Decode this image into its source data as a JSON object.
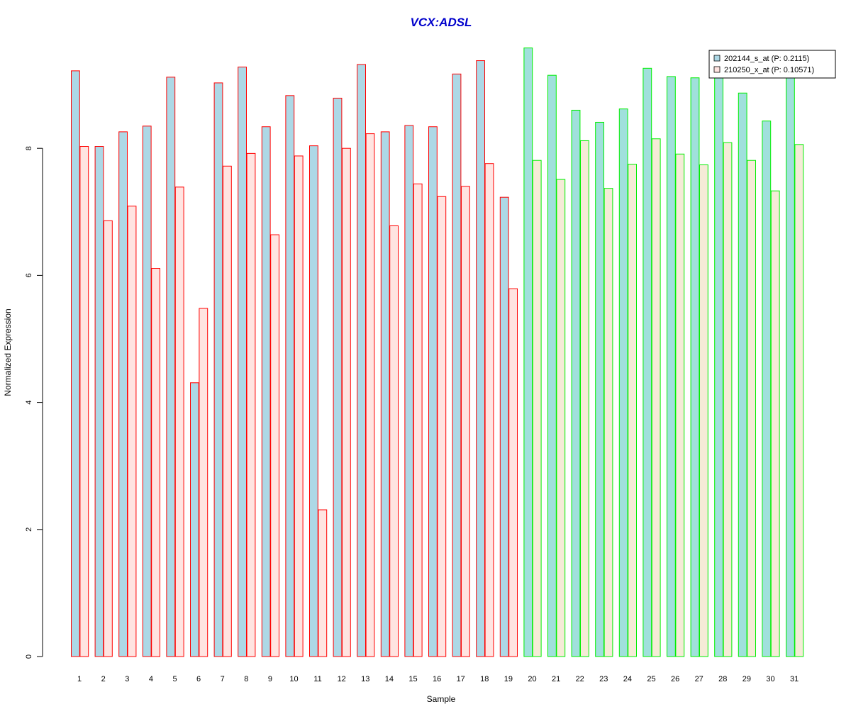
{
  "chart_data": {
    "type": "bar",
    "title": "VCX:ADSL",
    "xlabel": "Sample",
    "ylabel": "Normalized Expression",
    "ylim": [
      0,
      9.6
    ],
    "yticks": [
      0,
      2,
      4,
      6,
      8
    ],
    "categories": [
      "1",
      "2",
      "3",
      "4",
      "5",
      "6",
      "7",
      "8",
      "9",
      "10",
      "11",
      "12",
      "13",
      "14",
      "15",
      "16",
      "17",
      "18",
      "19",
      "20",
      "21",
      "22",
      "23",
      "24",
      "25",
      "26",
      "27",
      "28",
      "29",
      "30",
      "31"
    ],
    "series": [
      {
        "name": "202144_s_at (P: 0.2115)",
        "values": [
          9.22,
          8.03,
          8.26,
          8.35,
          9.12,
          4.31,
          9.03,
          9.28,
          8.34,
          8.83,
          8.04,
          8.79,
          9.32,
          8.26,
          8.36,
          8.34,
          9.17,
          9.38,
          7.23,
          9.58,
          9.15,
          8.6,
          8.41,
          8.62,
          9.26,
          9.13,
          9.11,
          9.13,
          8.87,
          8.43,
          9.13
        ]
      },
      {
        "name": "210250_x_at (P: 0.10571)",
        "values": [
          8.03,
          6.86,
          7.09,
          6.11,
          7.39,
          5.48,
          7.72,
          7.92,
          6.64,
          7.88,
          2.31,
          8.0,
          8.23,
          6.78,
          7.44,
          7.24,
          7.4,
          7.76,
          5.79,
          7.81,
          7.51,
          8.12,
          7.37,
          7.75,
          8.15,
          7.91,
          7.74,
          8.09,
          7.81,
          7.33,
          8.06
        ]
      }
    ],
    "groups": [
      {
        "samples": 19,
        "border": "#ff0000",
        "fills": [
          "#add8e6",
          "#ffe4e1"
        ]
      },
      {
        "samples": 12,
        "border": "#00ee00",
        "fills": [
          "#a0e0dc",
          "#f5ebd7"
        ]
      }
    ],
    "colors": {
      "title": "#0000cc",
      "axis": "#000000",
      "legend_swatches": [
        "#add8e6",
        "#ffe4e1"
      ]
    },
    "legend_position": "top-right"
  }
}
